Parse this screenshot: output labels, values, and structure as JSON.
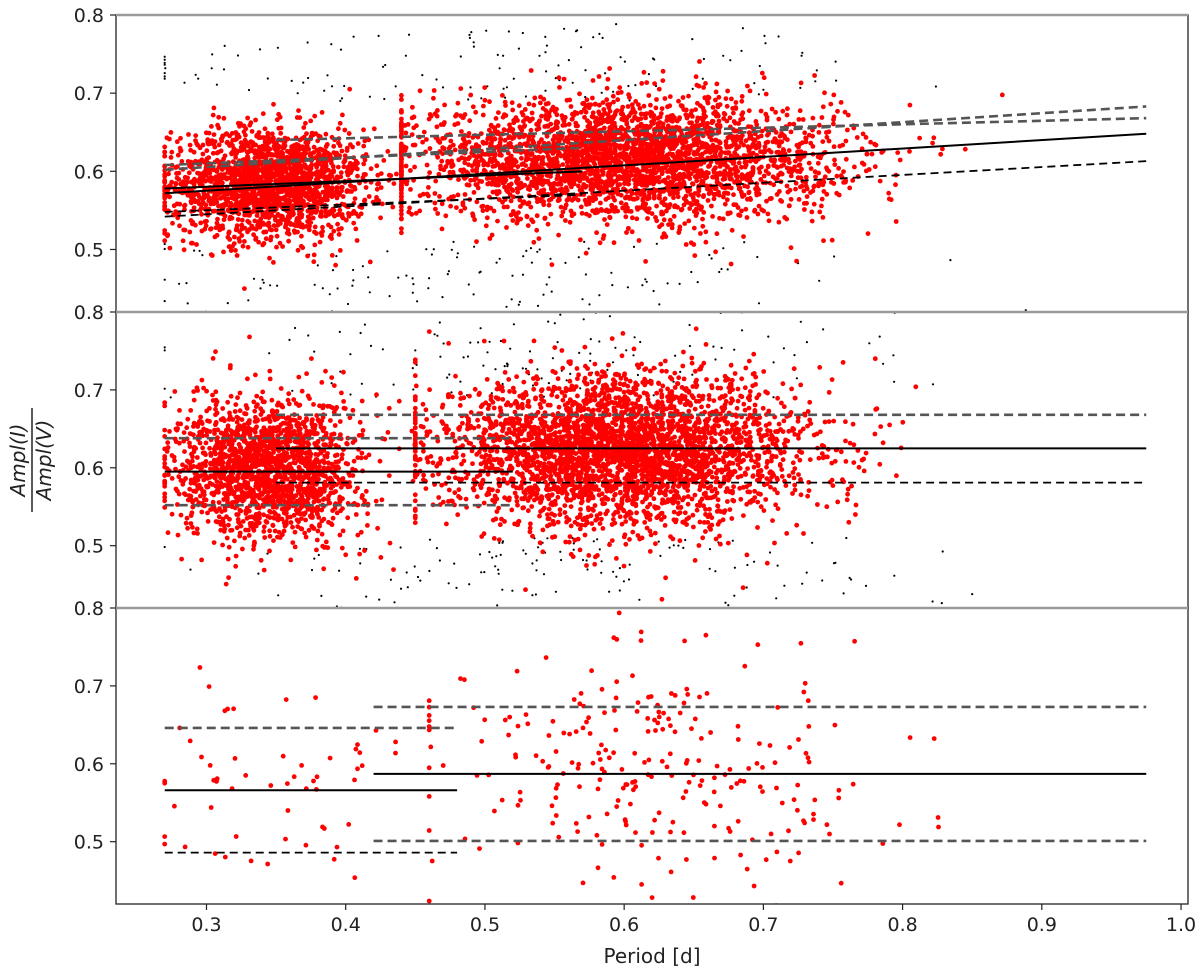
{
  "chart_data": {
    "type": "scatter",
    "xlabel": "Period [d]",
    "ylabel_numerator": "Ampl(I)",
    "ylabel_denominator": "Ampl(V)",
    "xlim": [
      0.235,
      1.005
    ],
    "xticks": [
      "0.3",
      "0.4",
      "0.5",
      "0.6",
      "0.7",
      "0.8",
      "0.9",
      "1.0"
    ],
    "point_color_selected": "#ff0000",
    "point_color_rejected": "#000000",
    "fit_line_color": "#000000",
    "limit_line_color": "#555555",
    "panels": [
      {
        "ylim": [
          0.42,
          0.8
        ],
        "yticks": [
          "0.5",
          "0.6",
          "0.7",
          "0.8"
        ],
        "lines": [
          {
            "style": "solid",
            "x": [
              0.27,
              0.975
            ],
            "y": [
              0.572,
              0.648
            ]
          },
          {
            "style": "dashed-gray",
            "x": [
              0.27,
              0.975
            ],
            "y": [
              0.602,
              0.683
            ]
          },
          {
            "style": "dashed-black",
            "x": [
              0.27,
              0.975
            ],
            "y": [
              0.542,
              0.613
            ]
          },
          {
            "style": "solid",
            "x": [
              0.27,
              0.57
            ],
            "y": [
              0.578,
              0.6
            ]
          },
          {
            "style": "dashed-gray",
            "x": [
              0.27,
              0.57
            ],
            "y": [
              0.608,
              0.63
            ]
          },
          {
            "style": "dashed-black",
            "x": [
              0.27,
              0.57
            ],
            "y": [
              0.548,
              0.57
            ]
          },
          {
            "style": "dashed-gray",
            "x": [
              0.35,
              0.975
            ],
            "y": [
              0.64,
              0.668
            ]
          }
        ],
        "clusters": [
          {
            "kind": "selected",
            "count": 1900,
            "xmin": 0.27,
            "xmax": 0.44,
            "xmean": 0.345,
            "xsd": 0.035,
            "ymean": 0.585,
            "ysd": 0.035
          },
          {
            "kind": "selected",
            "count": 3200,
            "xmin": 0.44,
            "xmax": 0.975,
            "xmean": 0.6,
            "xsd": 0.075,
            "ymean": 0.615,
            "ysd": 0.038
          },
          {
            "kind": "rejected",
            "count": 260,
            "xmin": 0.27,
            "xmax": 0.98,
            "xmean": 0.5,
            "xsd": 0.14,
            "ymean": 0.6,
            "ysd": 0.12
          }
        ]
      },
      {
        "ylim": [
          0.42,
          0.8
        ],
        "yticks": [
          "0.5",
          "0.6",
          "0.7",
          "0.8"
        ],
        "lines": [
          {
            "style": "solid",
            "x": [
              0.27,
              0.52
            ],
            "y": [
              0.595,
              0.595
            ]
          },
          {
            "style": "dashed-gray",
            "x": [
              0.27,
              0.52
            ],
            "y": [
              0.638,
              0.638
            ]
          },
          {
            "style": "dashed-gray",
            "x": [
              0.27,
              0.52
            ],
            "y": [
              0.552,
              0.552
            ]
          },
          {
            "style": "solid",
            "x": [
              0.35,
              0.975
            ],
            "y": [
              0.625,
              0.625
            ]
          },
          {
            "style": "dashed-gray",
            "x": [
              0.35,
              0.975
            ],
            "y": [
              0.668,
              0.668
            ]
          },
          {
            "style": "dashed-black",
            "x": [
              0.35,
              0.975
            ],
            "y": [
              0.581,
              0.581
            ]
          }
        ],
        "clusters": [
          {
            "kind": "selected",
            "count": 1800,
            "xmin": 0.27,
            "xmax": 0.45,
            "xmean": 0.345,
            "xsd": 0.033,
            "ymean": 0.598,
            "ysd": 0.045
          },
          {
            "kind": "selected",
            "count": 3400,
            "xmin": 0.45,
            "xmax": 0.975,
            "xmean": 0.6,
            "xsd": 0.065,
            "ymean": 0.622,
            "ysd": 0.048
          },
          {
            "kind": "rejected",
            "count": 300,
            "xmin": 0.27,
            "xmax": 0.98,
            "xmean": 0.55,
            "xsd": 0.13,
            "ymean": 0.6,
            "ysd": 0.13
          }
        ]
      },
      {
        "ylim": [
          0.42,
          0.8
        ],
        "yticks": [
          "0.5",
          "0.6",
          "0.7",
          "0.8"
        ],
        "lines": [
          {
            "style": "solid",
            "x": [
              0.27,
              0.48
            ],
            "y": [
              0.566,
              0.566
            ]
          },
          {
            "style": "dashed-gray",
            "x": [
              0.27,
              0.48
            ],
            "y": [
              0.646,
              0.646
            ]
          },
          {
            "style": "dashed-black",
            "x": [
              0.27,
              0.48
            ],
            "y": [
              0.486,
              0.486
            ]
          },
          {
            "style": "solid",
            "x": [
              0.42,
              0.975
            ],
            "y": [
              0.587,
              0.587
            ]
          },
          {
            "style": "dashed-gray",
            "x": [
              0.42,
              0.975
            ],
            "y": [
              0.673,
              0.673
            ]
          },
          {
            "style": "dashed-gray",
            "x": [
              0.42,
              0.975
            ],
            "y": [
              0.501,
              0.501
            ]
          }
        ],
        "clusters": [
          {
            "kind": "selected",
            "count": 60,
            "xmin": 0.27,
            "xmax": 0.47,
            "xmean": 0.35,
            "xsd": 0.05,
            "ymean": 0.57,
            "ysd": 0.07
          },
          {
            "kind": "selected",
            "count": 260,
            "xmin": 0.46,
            "xmax": 0.975,
            "xmean": 0.62,
            "xsd": 0.08,
            "ymean": 0.59,
            "ysd": 0.08
          }
        ]
      }
    ]
  }
}
